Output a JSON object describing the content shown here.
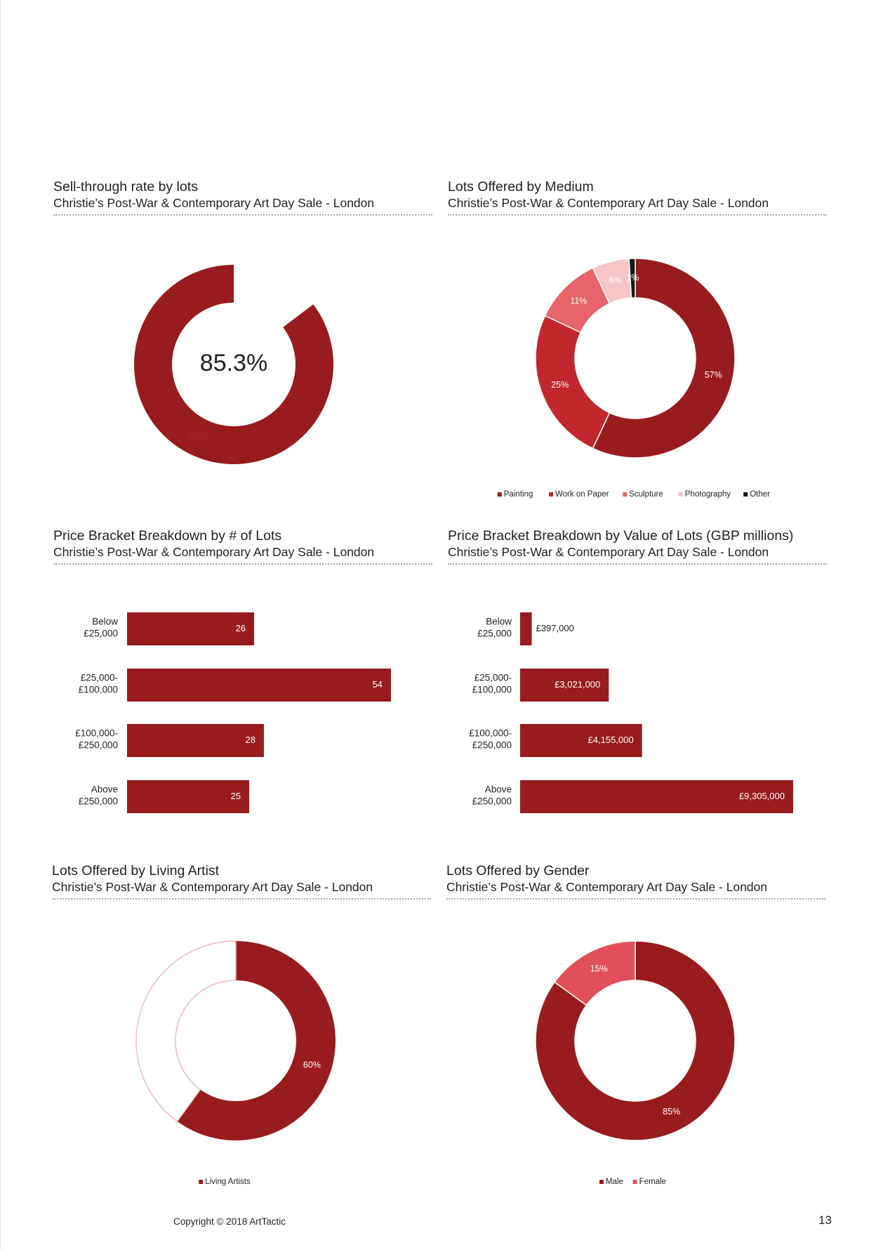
{
  "page_number": "13",
  "footer": "Copyright © 2018 ArtTactic",
  "colors": {
    "painting": "#981b1e",
    "work_on_paper": "#c1272d",
    "sculpture": "#e8636a",
    "photography": "#f6c5c7",
    "other": "#1a1a1a",
    "female": "#e1505a",
    "living_outline": "#f2b9bc"
  },
  "panels": [
    {
      "title": "Sell-through rate by lots",
      "subtitle": "Christie’s Post-War & Contemporary Art Day Sale - London"
    },
    {
      "title": "Lots Offered by Medium",
      "subtitle": "Christie’s Post-War & Contemporary Art Day Sale - London"
    },
    {
      "title": "Price Bracket Breakdown by # of Lots",
      "subtitle": "Christie’s Post-War & Contemporary Art Day Sale - London"
    },
    {
      "title": "Price Bracket Breakdown by Value of Lots (GBP millions)",
      "subtitle": "Christie’s Post-War & Contemporary Art Day Sale - London"
    },
    {
      "title": "Lots Offered by Living Artist",
      "subtitle": "Christie’s Post-War & Contemporary Art Day Sale - London"
    },
    {
      "title": "Lots Offered by Gender",
      "subtitle": "Christie’s Post-War & Contemporary Art Day Sale - London"
    }
  ],
  "chart_data": [
    {
      "type": "pie",
      "center_text": "85.3%",
      "slices": [
        {
          "label": "85%",
          "value": 85.3
        }
      ],
      "total": 100
    },
    {
      "type": "pie",
      "slices": [
        {
          "name": "Painting",
          "value": 57,
          "label": "57%"
        },
        {
          "name": "Work on Paper",
          "value": 25,
          "label": "25%"
        },
        {
          "name": "Sculpture",
          "value": 11,
          "label": "11%"
        },
        {
          "name": "Photography",
          "value": 6,
          "label": "6%"
        },
        {
          "name": "Other",
          "value": 1,
          "label": "1%"
        }
      ],
      "legend": [
        "Painting",
        "Work on Paper",
        "Sculpture",
        "Photography",
        "Other"
      ]
    },
    {
      "type": "bar",
      "orientation": "horizontal",
      "categories": [
        [
          "Below",
          "£25,000"
        ],
        [
          "£25,000-",
          "£100,000"
        ],
        [
          "£100,000-",
          "£250,000"
        ],
        [
          "Above",
          "£250,000"
        ]
      ],
      "values": [
        26,
        54,
        28,
        25
      ],
      "labels": [
        "26",
        "54",
        "28",
        "25"
      ],
      "xlim": [
        0,
        54
      ]
    },
    {
      "type": "bar",
      "orientation": "horizontal",
      "categories": [
        [
          "Below",
          "£25,000"
        ],
        [
          "£25,000-",
          "£100,000"
        ],
        [
          "£100,000-",
          "£250,000"
        ],
        [
          "Above",
          "£250,000"
        ]
      ],
      "values": [
        397000,
        3021000,
        4155000,
        9305000
      ],
      "labels": [
        "£397,000",
        "£3,021,000",
        "£4,155,000",
        "£9,305,000"
      ],
      "xlim": [
        0,
        9305000
      ]
    },
    {
      "type": "pie",
      "slices": [
        {
          "name": "Living Artists",
          "value": 60,
          "label": "60%"
        },
        {
          "name": "",
          "value": 40,
          "label": ""
        }
      ],
      "legend": [
        "Living Artists"
      ]
    },
    {
      "type": "pie",
      "slices": [
        {
          "name": "Male",
          "value": 85,
          "label": "85%"
        },
        {
          "name": "Female",
          "value": 15,
          "label": "15%"
        }
      ],
      "legend": [
        "Male",
        "Female"
      ]
    }
  ]
}
